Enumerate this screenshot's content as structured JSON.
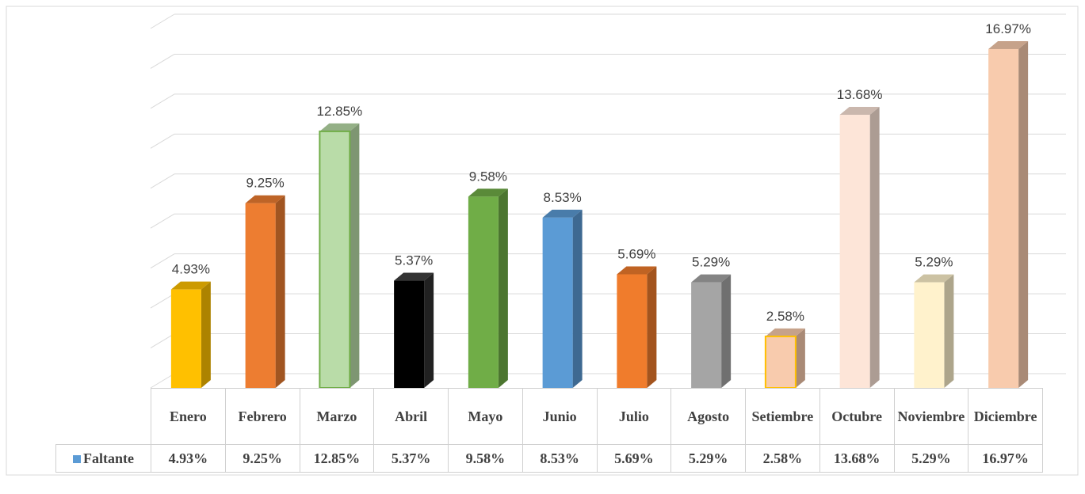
{
  "chart_data": {
    "type": "bar3d",
    "categories": [
      "Enero",
      "Febrero",
      "Marzo",
      "Abril",
      "Mayo",
      "Junio",
      "Julio",
      "Agosto",
      "Setiembre",
      "Octubre",
      "Noviembre",
      "Diciembre"
    ],
    "series": [
      {
        "name": "Faltante",
        "color": "#5b9bd5",
        "colors": [
          "#ffc000",
          "#ed7d31",
          "#b9dca8",
          "#000000",
          "#70ad47",
          "#5b9bd5",
          "#f07c2c",
          "#a5a5a5",
          "#f8cbad",
          "#fde5d8",
          "#fff2cc",
          "#f8cbad"
        ],
        "values": [
          4.93,
          9.25,
          12.85,
          5.37,
          9.58,
          8.53,
          5.69,
          5.29,
          2.58,
          13.68,
          5.29,
          16.97
        ],
        "value_labels": [
          "4.93%",
          "9.25%",
          "12.85%",
          "5.37%",
          "9.58%",
          "8.53%",
          "5.69%",
          "5.29%",
          "2.58%",
          "13.68%",
          "5.29%",
          "16.97%"
        ]
      }
    ],
    "ylim": [
      0,
      18
    ],
    "yticks": [
      0,
      2,
      4,
      6,
      8,
      10,
      12,
      14,
      16,
      18
    ],
    "grid": true
  }
}
